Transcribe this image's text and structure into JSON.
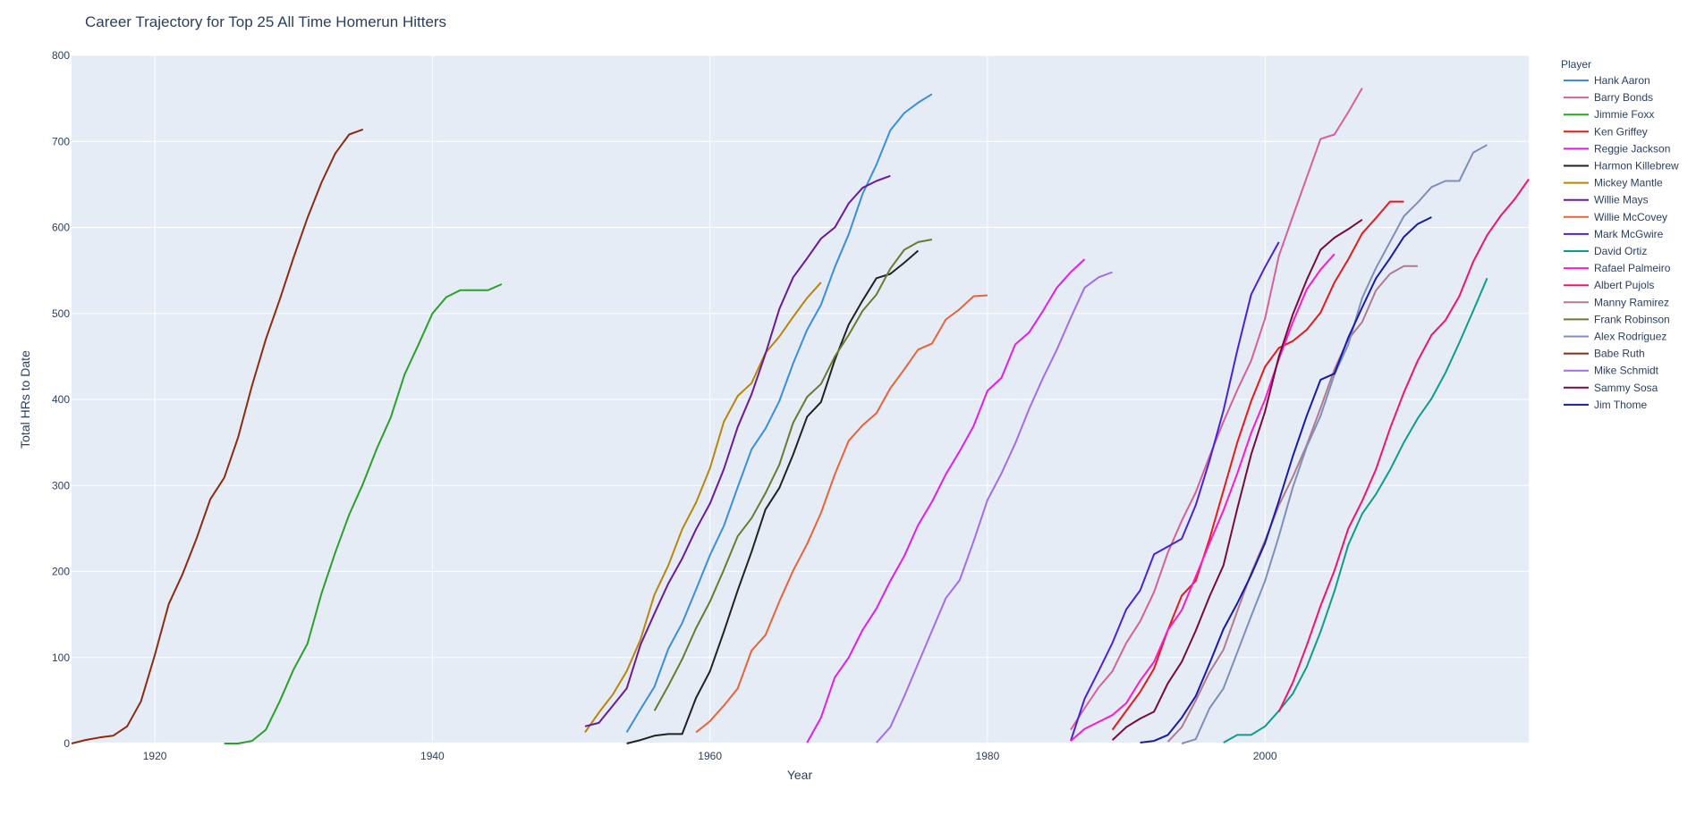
{
  "chart_data": {
    "type": "line",
    "title": "Career Trajectory for Top 25 All Time Homerun Hitters",
    "xlabel": "Year",
    "ylabel": "Total HRs to Date",
    "xlim": [
      1914,
      2019
    ],
    "ylim": [
      0,
      800
    ],
    "x_ticks": [
      1920,
      1940,
      1960,
      1980,
      2000
    ],
    "y_ticks": [
      0,
      100,
      200,
      300,
      400,
      500,
      600,
      700,
      800
    ],
    "grid": true,
    "legend_title": "Player",
    "legend_position": "right",
    "series": [
      {
        "name": "Hank Aaron",
        "color": "#3b8fd9",
        "x": [
          1954,
          1955,
          1956,
          1957,
          1958,
          1959,
          1960,
          1961,
          1962,
          1963,
          1964,
          1965,
          1966,
          1967,
          1968,
          1969,
          1970,
          1971,
          1972,
          1973,
          1974,
          1975,
          1976
        ],
        "y": [
          13,
          40,
          66,
          110,
          140,
          179,
          219,
          253,
          298,
          342,
          366,
          398,
          442,
          481,
          510,
          554,
          592,
          639,
          673,
          713,
          733,
          745,
          755
        ]
      },
      {
        "name": "Barry Bonds",
        "color": "#d6609a",
        "x": [
          1986,
          1987,
          1988,
          1989,
          1990,
          1991,
          1992,
          1993,
          1994,
          1995,
          1996,
          1997,
          1998,
          1999,
          2000,
          2001,
          2002,
          2003,
          2004,
          2005,
          2006,
          2007
        ],
        "y": [
          16,
          41,
          65,
          84,
          117,
          142,
          176,
          222,
          259,
          292,
          334,
          374,
          411,
          445,
          494,
          567,
          613,
          658,
          703,
          708,
          734,
          762
        ]
      },
      {
        "name": "Jimmie Foxx",
        "color": "#2ca02c",
        "x": [
          1925,
          1926,
          1927,
          1928,
          1929,
          1930,
          1931,
          1932,
          1933,
          1934,
          1935,
          1936,
          1937,
          1938,
          1939,
          1940,
          1941,
          1942,
          1943,
          1944,
          1945
        ],
        "y": [
          0,
          0,
          3,
          16,
          49,
          86,
          116,
          174,
          222,
          266,
          302,
          343,
          379,
          429,
          464,
          500,
          519,
          527,
          527,
          527,
          534
        ]
      },
      {
        "name": "Ken Griffey",
        "color": "#e8191c",
        "x": [
          1989,
          1990,
          1991,
          1992,
          1993,
          1994,
          1995,
          1996,
          1997,
          1998,
          1999,
          2000,
          2001,
          2002,
          2003,
          2004,
          2005,
          2006,
          2007,
          2008,
          2009,
          2010
        ],
        "y": [
          16,
          38,
          60,
          87,
          132,
          172,
          189,
          238,
          294,
          350,
          398,
          438,
          460,
          468,
          481,
          501,
          536,
          563,
          593,
          611,
          630,
          630
        ]
      },
      {
        "name": "Reggie Jackson",
        "color": "#e31ee3",
        "x": [
          1967,
          1968,
          1969,
          1970,
          1971,
          1972,
          1973,
          1974,
          1975,
          1976,
          1977,
          1978,
          1979,
          1980,
          1981,
          1982,
          1983,
          1984,
          1985,
          1986,
          1987
        ],
        "y": [
          1,
          30,
          77,
          100,
          132,
          157,
          189,
          218,
          254,
          281,
          313,
          340,
          369,
          410,
          425,
          464,
          478,
          503,
          530,
          548,
          563
        ]
      },
      {
        "name": "Harmon Killebrew",
        "color": "#222222",
        "x": [
          1954,
          1955,
          1956,
          1957,
          1958,
          1959,
          1960,
          1961,
          1962,
          1963,
          1964,
          1965,
          1966,
          1967,
          1968,
          1969,
          1970,
          1971,
          1972,
          1973,
          1974,
          1975
        ],
        "y": [
          0,
          4,
          9,
          11,
          11,
          53,
          84,
          130,
          178,
          223,
          272,
          297,
          336,
          380,
          397,
          446,
          487,
          515,
          541,
          546,
          559,
          573
        ]
      },
      {
        "name": "Mickey Mantle",
        "color": "#b8860b",
        "x": [
          1951,
          1952,
          1953,
          1954,
          1955,
          1956,
          1957,
          1958,
          1959,
          1960,
          1961,
          1962,
          1963,
          1964,
          1965,
          1966,
          1967,
          1968
        ],
        "y": [
          13,
          36,
          57,
          84,
          121,
          173,
          207,
          249,
          280,
          320,
          374,
          404,
          419,
          454,
          473,
          496,
          518,
          536
        ]
      },
      {
        "name": "Willie Mays",
        "color": "#6a1b9a",
        "x": [
          1951,
          1952,
          1953,
          1954,
          1955,
          1956,
          1957,
          1958,
          1959,
          1960,
          1961,
          1962,
          1963,
          1964,
          1965,
          1966,
          1967,
          1968,
          1969,
          1970,
          1971,
          1972,
          1973
        ],
        "y": [
          20,
          24,
          44,
          64,
          115,
          151,
          186,
          215,
          249,
          279,
          319,
          368,
          406,
          453,
          505,
          542,
          564,
          587,
          600,
          628,
          646,
          654,
          660
        ]
      },
      {
        "name": "Willie McCovey",
        "color": "#e8633a",
        "x": [
          1959,
          1960,
          1961,
          1962,
          1963,
          1964,
          1965,
          1966,
          1967,
          1968,
          1969,
          1970,
          1971,
          1972,
          1973,
          1974,
          1975,
          1976,
          1977,
          1978,
          1979,
          1980
        ],
        "y": [
          13,
          26,
          44,
          64,
          108,
          126,
          165,
          201,
          232,
          268,
          313,
          352,
          370,
          384,
          413,
          435,
          458,
          465,
          493,
          505,
          520,
          521
        ]
      },
      {
        "name": "Mark McGwire",
        "color": "#4b22d8",
        "x": [
          1986,
          1987,
          1988,
          1989,
          1990,
          1991,
          1992,
          1993,
          1994,
          1995,
          1996,
          1997,
          1998,
          1999,
          2000,
          2001
        ],
        "y": [
          3,
          52,
          84,
          117,
          156,
          178,
          220,
          229,
          238,
          277,
          329,
          387,
          457,
          522,
          554,
          583
        ]
      },
      {
        "name": "David Ortiz",
        "color": "#0f9d8a",
        "x": [
          1997,
          1998,
          1999,
          2000,
          2001,
          2002,
          2003,
          2004,
          2005,
          2006,
          2007,
          2008,
          2009,
          2010,
          2011,
          2012,
          2013,
          2014,
          2015,
          2016
        ],
        "y": [
          1,
          10,
          10,
          20,
          38,
          58,
          89,
          130,
          177,
          231,
          267,
          290,
          318,
          350,
          378,
          401,
          431,
          466,
          503,
          541
        ]
      },
      {
        "name": "Rafael Palmeiro",
        "color": "#ff1ac6",
        "x": [
          1986,
          1987,
          1988,
          1989,
          1990,
          1991,
          1992,
          1993,
          1994,
          1995,
          1996,
          1997,
          1998,
          1999,
          2000,
          2001,
          2002,
          2003,
          2004,
          2005
        ],
        "y": [
          3,
          17,
          25,
          33,
          47,
          73,
          95,
          132,
          155,
          194,
          233,
          271,
          314,
          361,
          400,
          447,
          490,
          528,
          551,
          569
        ]
      },
      {
        "name": "Albert Pujols",
        "color": "#f0146e",
        "x": [
          2001,
          2002,
          2003,
          2004,
          2005,
          2006,
          2007,
          2008,
          2009,
          2010,
          2011,
          2012,
          2013,
          2014,
          2015,
          2016,
          2017,
          2018,
          2019
        ],
        "y": [
          37,
          71,
          114,
          160,
          201,
          250,
          282,
          319,
          366,
          408,
          445,
          475,
          492,
          520,
          560,
          591,
          614,
          633,
          656
        ]
      },
      {
        "name": "Manny Ramirez",
        "color": "#b37a8f",
        "x": [
          1993,
          1994,
          1995,
          1996,
          1997,
          1998,
          1999,
          2000,
          2001,
          2002,
          2003,
          2004,
          2005,
          2006,
          2007,
          2008,
          2009,
          2010,
          2011
        ],
        "y": [
          2,
          19,
          50,
          83,
          109,
          154,
          198,
          236,
          277,
          310,
          347,
          390,
          435,
          470,
          490,
          527,
          546,
          555,
          555
        ]
      },
      {
        "name": "Frank Robinson",
        "color": "#6b7a2f",
        "x": [
          1956,
          1957,
          1958,
          1959,
          1960,
          1961,
          1962,
          1963,
          1964,
          1965,
          1966,
          1967,
          1968,
          1969,
          1970,
          1971,
          1972,
          1973,
          1974,
          1975,
          1976
        ],
        "y": [
          38,
          67,
          98,
          134,
          165,
          202,
          241,
          262,
          291,
          324,
          373,
          403,
          418,
          450,
          475,
          503,
          522,
          552,
          574,
          583,
          586
        ]
      },
      {
        "name": "Alex Rodriguez",
        "color": "#7f8fb8",
        "x": [
          1994,
          1995,
          1996,
          1997,
          1998,
          1999,
          2000,
          2001,
          2002,
          2003,
          2004,
          2005,
          2006,
          2007,
          2008,
          2009,
          2010,
          2011,
          2012,
          2013,
          2014,
          2015,
          2016
        ],
        "y": [
          0,
          5,
          41,
          64,
          106,
          148,
          189,
          241,
          298,
          345,
          381,
          429,
          464,
          518,
          553,
          583,
          613,
          629,
          647,
          654,
          654,
          687,
          696
        ]
      },
      {
        "name": "Babe Ruth",
        "color": "#8b2c12",
        "x": [
          1914,
          1915,
          1916,
          1917,
          1918,
          1919,
          1920,
          1921,
          1922,
          1923,
          1924,
          1925,
          1926,
          1927,
          1928,
          1929,
          1930,
          1931,
          1932,
          1933,
          1934,
          1935
        ],
        "y": [
          0,
          4,
          7,
          9,
          20,
          49,
          103,
          162,
          197,
          238,
          284,
          309,
          356,
          416,
          470,
          516,
          565,
          611,
          652,
          686,
          708,
          714
        ]
      },
      {
        "name": "Mike Schmidt",
        "color": "#a66ce8",
        "x": [
          1972,
          1973,
          1974,
          1975,
          1976,
          1977,
          1978,
          1979,
          1980,
          1981,
          1982,
          1983,
          1984,
          1985,
          1986,
          1987,
          1988,
          1989
        ],
        "y": [
          1,
          19,
          55,
          93,
          131,
          169,
          190,
          235,
          283,
          314,
          349,
          389,
          425,
          458,
          495,
          530,
          542,
          548
        ]
      },
      {
        "name": "Sammy Sosa",
        "color": "#7a0a3c",
        "x": [
          1989,
          1990,
          1991,
          1992,
          1993,
          1994,
          1995,
          1996,
          1997,
          1998,
          1999,
          2000,
          2001,
          2002,
          2003,
          2004,
          2005,
          2006,
          2007
        ],
        "y": [
          4,
          19,
          29,
          37,
          70,
          95,
          131,
          171,
          207,
          273,
          336,
          386,
          450,
          499,
          539,
          574,
          588,
          598,
          609
        ]
      },
      {
        "name": "Jim Thome",
        "color": "#1a1aa6",
        "x": [
          1991,
          1992,
          1993,
          1994,
          1995,
          1996,
          1997,
          1998,
          1999,
          2000,
          2001,
          2002,
          2003,
          2004,
          2005,
          2006,
          2007,
          2008,
          2009,
          2010,
          2011,
          2012
        ],
        "y": [
          1,
          3,
          10,
          30,
          55,
          93,
          133,
          163,
          196,
          233,
          282,
          334,
          381,
          423,
          430,
          472,
          507,
          541,
          564,
          589,
          604,
          612
        ]
      }
    ]
  }
}
